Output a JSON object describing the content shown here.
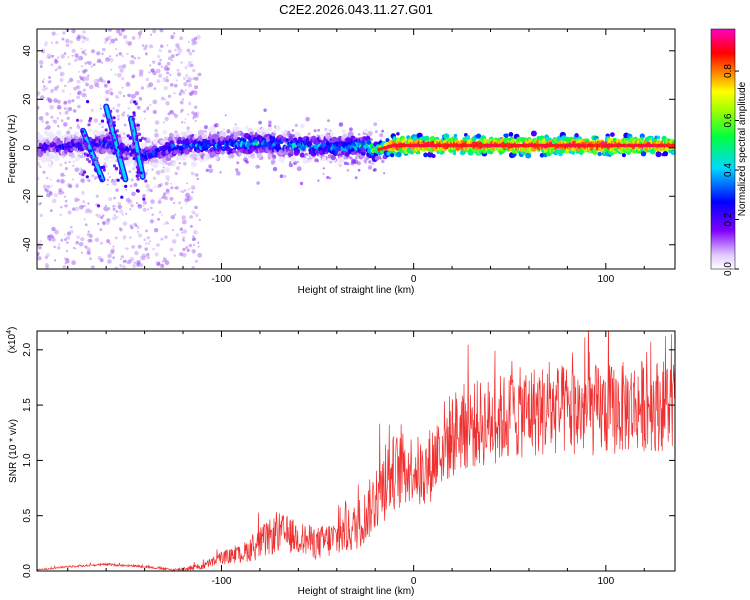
{
  "title": "C2E2.2026.043.11.27.G01",
  "chart_data": [
    {
      "type": "heatmap",
      "name": "spectrogram",
      "xlabel": "Height of straight line (km)",
      "ylabel": "Frequency (Hz)",
      "xlim": [
        -196,
        136
      ],
      "ylim": [
        -50,
        49
      ],
      "xticks": [
        -100,
        0,
        100
      ],
      "xtick_labels": [
        "-100",
        "0",
        "100"
      ],
      "yticks": [
        -40,
        -20,
        0,
        20,
        40
      ],
      "ytick_labels": [
        "-40",
        "-20",
        "0",
        "20",
        "40"
      ],
      "colorbar": {
        "label": "Normalized spectral amplitude",
        "range": [
          0,
          0.97
        ],
        "ticks": [
          0.0,
          0.2,
          0.4,
          0.6,
          0.8
        ],
        "tick_labels": [
          "0.0",
          "0.2",
          "0.4",
          "0.6",
          "0.8"
        ],
        "colormap": [
          "#e8e0f8",
          "#8000ff",
          "#0000ff",
          "#00d8ff",
          "#00ff00",
          "#ffff00",
          "#ff8000",
          "#ff0000",
          "#ff00ff"
        ]
      },
      "ridge": {
        "x": [
          -196,
          -160,
          -140,
          -120,
          -100,
          -80,
          -60,
          -40,
          -25,
          -20,
          -10,
          0,
          20,
          60,
          100,
          136
        ],
        "freq": [
          0,
          2,
          -3,
          1,
          1,
          2,
          1,
          0,
          1,
          -1,
          1,
          1,
          1,
          1,
          1,
          1
        ],
        "amplitude": [
          0.3,
          0.35,
          0.35,
          0.4,
          0.45,
          0.45,
          0.45,
          0.45,
          0.5,
          0.6,
          0.95,
          0.95,
          0.95,
          0.95,
          0.95,
          0.9
        ]
      },
      "streaks": [
        {
          "x": [
            -172,
            -162
          ],
          "freq": [
            7,
            -13
          ]
        },
        {
          "x": [
            -160,
            -150
          ],
          "freq": [
            17,
            -13
          ]
        },
        {
          "x": [
            -147,
            -141
          ],
          "freq": [
            12,
            -12
          ]
        }
      ]
    },
    {
      "type": "line",
      "name": "snr",
      "xlabel": "Height of straight line (km)",
      "ylabel": "SNR (10 * v/v)",
      "scale_note": "(x10",
      "scale_exp": "4",
      "xlim": [
        -196,
        136
      ],
      "ylim": [
        0,
        2.17
      ],
      "xticks": [
        -100,
        0,
        100
      ],
      "xtick_labels": [
        "-100",
        "0",
        "100"
      ],
      "yticks": [
        0.0,
        0.5,
        1.0,
        1.5,
        2.0
      ],
      "ytick_labels": [
        "0.0",
        "0.5",
        "1.0",
        "1.5",
        "2.0"
      ],
      "color": "#f03030",
      "envelope": {
        "x": [
          -196,
          -180,
          -160,
          -140,
          -125,
          -110,
          -100,
          -90,
          -80,
          -70,
          -60,
          -50,
          -40,
          -30,
          -25,
          -20,
          -15,
          -10,
          -5,
          0,
          5,
          10,
          15,
          25,
          40,
          60,
          80,
          100,
          120,
          136
        ],
        "mean": [
          0.01,
          0.04,
          0.06,
          0.04,
          0.01,
          0.04,
          0.12,
          0.15,
          0.25,
          0.35,
          0.3,
          0.25,
          0.3,
          0.4,
          0.5,
          0.65,
          0.8,
          0.9,
          0.9,
          0.95,
          0.85,
          1.0,
          1.15,
          1.3,
          1.35,
          1.45,
          1.45,
          1.45,
          1.5,
          1.5
        ],
        "spread": [
          0.005,
          0.01,
          0.01,
          0.01,
          0.01,
          0.03,
          0.06,
          0.08,
          0.15,
          0.18,
          0.15,
          0.15,
          0.18,
          0.22,
          0.25,
          0.3,
          0.35,
          0.35,
          0.35,
          0.3,
          0.35,
          0.35,
          0.4,
          0.4,
          0.4,
          0.42,
          0.42,
          0.42,
          0.42,
          0.42
        ]
      }
    }
  ]
}
